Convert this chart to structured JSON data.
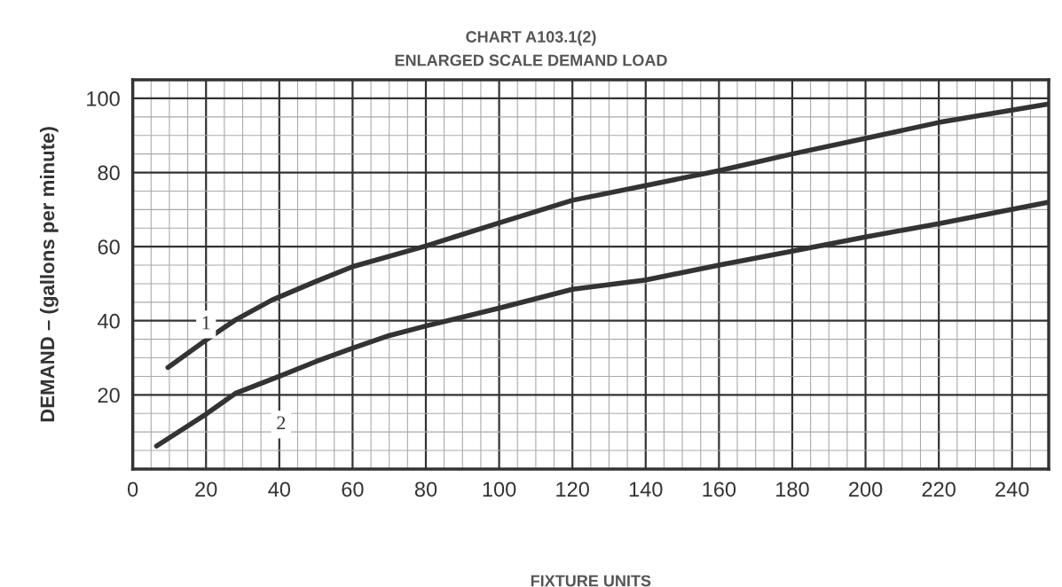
{
  "chart_data": {
    "type": "line",
    "title": "CHART A103.1(2)",
    "subtitle": "ENLARGED SCALE DEMAND LOAD",
    "xlabel": "FIXTURE UNITS",
    "ylabel": "DEMAND – (gallons per minute)",
    "series": [
      {
        "color": "#333333",
        "x": [
          9.6,
          20,
          28,
          38,
          50,
          60,
          80,
          100,
          120,
          140,
          160,
          180,
          200,
          220,
          250
        ],
        "values": [
          27.4,
          34.8,
          40.2,
          45.6,
          50.6,
          54.6,
          60.2,
          66.4,
          72.5,
          76.5,
          80.5,
          85,
          89.2,
          93.5,
          98.5
        ]
      },
      {
        "color": "#333333",
        "x": [
          6.5,
          20,
          28,
          40,
          50,
          60,
          70,
          80,
          100,
          120,
          140,
          160,
          180,
          200,
          220,
          250
        ],
        "values": [
          6.2,
          14.8,
          20.4,
          25,
          29,
          32.6,
          36,
          38.6,
          43.4,
          48.5,
          51,
          55,
          58.8,
          62.6,
          66.2,
          72
        ]
      }
    ],
    "annotations": [
      {
        "text": "1",
        "x": 20,
        "y": 39
      },
      {
        "text": "2",
        "x": 40.5,
        "y": 12
      }
    ],
    "xlim": [
      0,
      250
    ],
    "ylim": [
      0,
      105
    ],
    "xticks": [
      0,
      20,
      40,
      60,
      80,
      100,
      120,
      140,
      160,
      180,
      200,
      220,
      240
    ],
    "yticks": [
      20,
      40,
      60,
      80,
      100
    ],
    "grid": true,
    "legend": false,
    "marker": "none",
    "line_style": "solid"
  }
}
